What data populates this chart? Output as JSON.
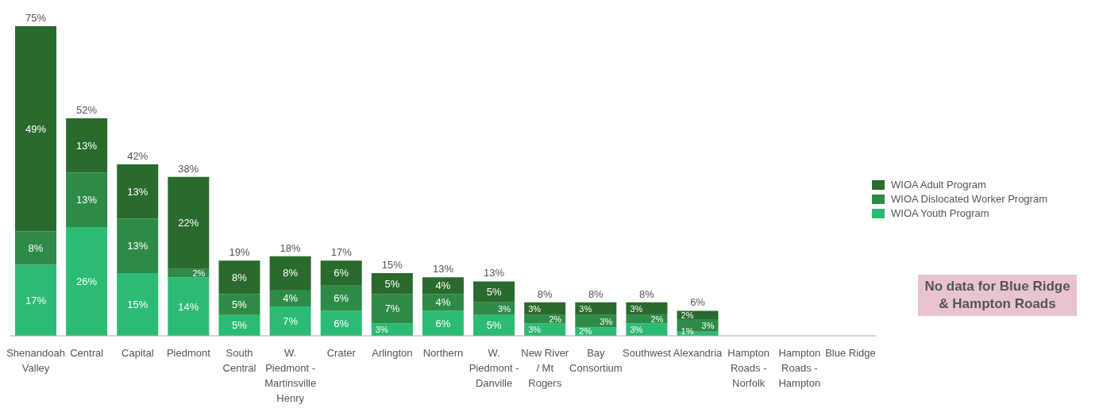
{
  "chart_data": {
    "type": "bar",
    "stacked": true,
    "legend": "right",
    "grid": false,
    "categories": [
      "Shenandoah Valley",
      "Central",
      "Capital",
      "Piedmont",
      "South Central",
      "W. Piedmont - Martinsville Henry",
      "Crater",
      "Arlington",
      "Northern",
      "W. Piedmont - Danville",
      "New River / Mt Rogers",
      "Bay Consortium",
      "Southwest",
      "Alexandria",
      "Hampton Roads - Norfolk",
      "Hampton Roads - Hampton",
      "Blue Ridge"
    ],
    "series": [
      {
        "name": "WIOA Youth Program",
        "color": "#2cbb74",
        "values": [
          17,
          26,
          15,
          14,
          5,
          7,
          6,
          3,
          6,
          5,
          3,
          2,
          3,
          1,
          null,
          null,
          null
        ],
        "value_labels": [
          "17%",
          "26%",
          "15%",
          "14%",
          "5%",
          "7%",
          "6%",
          "3%",
          "6%",
          "5%",
          "3%",
          "2%",
          "3%",
          "1%",
          null,
          null,
          null
        ]
      },
      {
        "name": "WIOA Dislocated Worker Program",
        "color": "#2e8b47",
        "values": [
          8,
          13,
          13,
          2,
          5,
          4,
          6,
          7,
          4,
          3,
          2,
          3,
          2,
          3,
          null,
          null,
          null
        ],
        "value_labels": [
          "8%",
          "13%",
          "13%",
          "2%",
          "5%",
          "4%",
          "6%",
          "7%",
          "4%",
          "3%",
          "2%",
          "3%",
          "2%",
          "3%",
          null,
          null,
          null
        ]
      },
      {
        "name": "WIOA Adult Program",
        "color": "#2a6a2d",
        "values": [
          49,
          13,
          13,
          22,
          8,
          8,
          6,
          5,
          4,
          5,
          3,
          3,
          3,
          2,
          null,
          null,
          null
        ],
        "value_labels": [
          "49%",
          "13%",
          "13%",
          "22%",
          "8%",
          "8%",
          "6%",
          "5%",
          "4%",
          "5%",
          "3%",
          "3%",
          "3%",
          "2%",
          null,
          null,
          null
        ]
      }
    ],
    "totals": [
      "75%",
      "52%",
      "42%",
      "38%",
      "19%",
      "18%",
      "17%",
      "15%",
      "13%",
      "13%",
      "8%",
      "8%",
      "8%",
      "6%",
      null,
      null,
      null
    ],
    "annotations": [
      "No data for Blue Ridge & Hampton Roads"
    ]
  }
}
